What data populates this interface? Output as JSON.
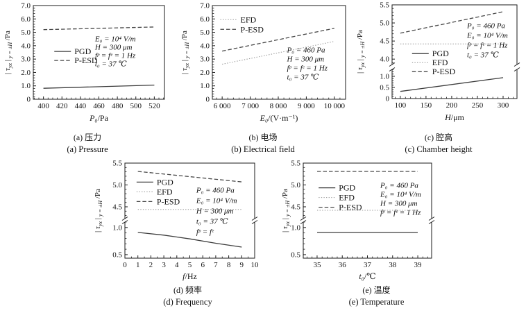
{
  "chart_data": [
    {
      "id": "a",
      "type": "line",
      "caption_cn": "(a) 压力",
      "caption_en": "(a) Pressure",
      "xlabel": [
        {
          "t": "P₀",
          "i": true
        },
        {
          "t": "/Pa",
          "i": false
        }
      ],
      "ylabel": [
        {
          "t": "| ",
          "i": false,
          "s": false
        },
        {
          "t": "τ",
          "i": true,
          "s": false
        },
        {
          "t": "yx",
          "i": true,
          "s": true
        },
        {
          "t": " |",
          "i": false,
          "s": false
        },
        {
          "t": " y = ±H",
          "i": true,
          "s": true
        },
        {
          "t": " /Pa",
          "i": false,
          "s": false
        }
      ],
      "x": {
        "min": 389,
        "max": 531,
        "ticks": [
          400,
          420,
          440,
          460,
          480,
          500,
          520
        ],
        "labels": [
          "400",
          "420",
          "440",
          "460",
          "480",
          "500",
          "520"
        ],
        "minor": 3
      },
      "segments": [
        {
          "min": 0,
          "max": 7,
          "ticks": [
            0,
            1,
            2,
            3,
            4,
            5,
            6,
            7
          ],
          "labels": [
            "0",
            "1.0",
            "2.0",
            "3.0",
            "4.0",
            "5.0",
            "6.0",
            "7.0"
          ],
          "minor": 4
        }
      ],
      "series": [
        {
          "name": "PGD",
          "dash": "solid",
          "x": [
            400,
            520
          ],
          "y": [
            0.82,
            1.06
          ]
        },
        {
          "name": "P-ESD",
          "dash": "dashed",
          "x": [
            400,
            520
          ],
          "y": [
            5.2,
            5.4
          ]
        }
      ],
      "legend": {
        "pos": [
          0.16,
          0.49
        ],
        "spacing": 13,
        "items": [
          "PGD",
          "P-ESD"
        ]
      },
      "note": {
        "pos": [
          0.47,
          0.35
        ],
        "spacing": 12,
        "lines": [
          "E₀ = 10⁴ V/m",
          "H = 300 μm",
          "fᵖ = fᵉ = 1 Hz",
          "t₀ = 37 ℃"
        ]
      }
    },
    {
      "id": "b",
      "type": "line",
      "caption_cn": "(b) 电场",
      "caption_en": "(b) Electrical field",
      "xlabel": [
        {
          "t": "E₀",
          "i": true
        },
        {
          "t": "/(V·m⁻¹)",
          "i": false
        }
      ],
      "ylabel": [
        {
          "t": "| ",
          "i": false,
          "s": false
        },
        {
          "t": "τ",
          "i": true,
          "s": false
        },
        {
          "t": "yx",
          "i": true,
          "s": true
        },
        {
          "t": " |",
          "i": false,
          "s": false
        },
        {
          "t": " y = ±H",
          "i": true,
          "s": true
        },
        {
          "t": " /Pa",
          "i": false,
          "s": false
        }
      ],
      "x": {
        "min": 5650,
        "max": 10400,
        "ticks": [
          6000,
          7000,
          8000,
          9000,
          10000
        ],
        "labels": [
          "6 000",
          "7 000",
          "8 000",
          "9 000",
          "10 000"
        ],
        "minor": 4
      },
      "segments": [
        {
          "min": 0,
          "max": 7,
          "ticks": [
            0,
            1,
            2,
            3,
            4,
            5,
            6,
            7
          ],
          "labels": [
            "0",
            "1.0",
            "2.0",
            "3.0",
            "4.0",
            "5.0",
            "6.0",
            "7.0"
          ],
          "minor": 4
        }
      ],
      "series": [
        {
          "name": "EFD",
          "dash": "dotted",
          "x": [
            6000,
            10000
          ],
          "y": [
            2.62,
            4.32
          ]
        },
        {
          "name": "P-ESD",
          "dash": "dashed",
          "x": [
            6000,
            10000
          ],
          "y": [
            3.6,
            5.3
          ]
        }
      ],
      "legend": {
        "pos": [
          0.06,
          0.15
        ],
        "spacing": 14,
        "items": [
          "EFD",
          "P-ESD"
        ]
      },
      "note": {
        "pos": [
          0.56,
          0.47
        ],
        "spacing": 13,
        "lines": [
          "P₀ = 460 Pa",
          "H = 300 μm",
          "fᵖ = fᵉ = 1 Hz",
          "t₀ = 37 ℃"
        ]
      }
    },
    {
      "id": "c",
      "type": "line",
      "caption_cn": "(c) 腔高",
      "caption_en": "(c) Chamber height",
      "xlabel": [
        {
          "t": "H",
          "i": true
        },
        {
          "t": "/μm",
          "i": false
        }
      ],
      "ylabel": [
        {
          "t": "| ",
          "i": false,
          "s": false
        },
        {
          "t": "τ",
          "i": true,
          "s": false
        },
        {
          "t": "yx",
          "i": true,
          "s": true
        },
        {
          "t": " |",
          "i": false,
          "s": false
        },
        {
          "t": " y = ±H",
          "i": true,
          "s": true
        },
        {
          "t": " /Pa",
          "i": false,
          "s": false
        }
      ],
      "x": {
        "min": 84,
        "max": 327,
        "ticks": [
          100,
          150,
          200,
          250,
          300
        ],
        "labels": [
          "100",
          "150",
          "200",
          "250",
          "300"
        ],
        "minor": 4
      },
      "segments": [
        {
          "min": 3.85,
          "max": 5.5,
          "ticks": [
            4,
            4.5,
            5,
            5.5
          ],
          "labels": [
            "4.0",
            "4.5",
            "5.0",
            "5.5"
          ],
          "minor": 4
        },
        {
          "min": 0,
          "max": 1.31,
          "ticks": [
            0,
            0.5,
            1
          ],
          "labels": [
            "0",
            "0.5",
            "1.0"
          ],
          "minor": 4
        }
      ],
      "series": [
        {
          "name": "PGD",
          "dash": "solid",
          "x": [
            100,
            300
          ],
          "y": [
            0.32,
            0.94
          ]
        },
        {
          "name": "EFD",
          "dash": "dotted",
          "x": [
            100,
            300
          ],
          "y": [
            4.42,
            4.42
          ]
        },
        {
          "name": "P-ESD",
          "dash": "dashed",
          "x": [
            100,
            300
          ],
          "y": [
            4.72,
            5.31
          ]
        }
      ],
      "legend": {
        "pos": [
          0.16,
          0.52
        ],
        "spacing": 13,
        "items": [
          "PGD",
          "EFD",
          "P-ESD"
        ]
      },
      "note": {
        "pos": [
          0.6,
          0.22
        ],
        "spacing": 14,
        "lines": [
          "P₀ = 460 Pa",
          "E₀ = 10⁴ V/m",
          "fᵖ = fᵉ = 1 Hz",
          "t₀ = 37 ℃"
        ]
      }
    },
    {
      "id": "d",
      "type": "line",
      "caption_cn": "(d) 频率",
      "caption_en": "(d) Frequency",
      "xlabel": [
        {
          "t": "f",
          "i": true
        },
        {
          "t": "/Hz",
          "i": false
        }
      ],
      "ylabel": [
        {
          "t": "| ",
          "i": false,
          "s": false
        },
        {
          "t": "τ",
          "i": true,
          "s": false
        },
        {
          "t": "yx",
          "i": true,
          "s": true
        },
        {
          "t": " |",
          "i": false,
          "s": false
        },
        {
          "t": " y = ±H",
          "i": true,
          "s": true
        },
        {
          "t": " /Pa",
          "i": false,
          "s": false
        }
      ],
      "x": {
        "min": 0,
        "max": 10,
        "ticks": [
          0,
          1,
          2,
          3,
          4,
          5,
          6,
          7,
          8,
          9,
          10
        ],
        "labels": [
          "0",
          "1",
          "2",
          "3",
          "4",
          "5",
          "6",
          "7",
          "8",
          "9",
          "10"
        ],
        "minor": 1
      },
      "segments": [
        {
          "min": 4.23,
          "max": 5.5,
          "ticks": [
            4.5,
            5,
            5.5
          ],
          "labels": [
            "4.5",
            "5.0",
            "5.5"
          ],
          "minor": 4
        },
        {
          "min": 0.435,
          "max": 1.1,
          "ticks": [
            0.5,
            1
          ],
          "labels": [
            "0.5",
            "1.0"
          ],
          "minor": 4
        }
      ],
      "series": [
        {
          "name": "PGD",
          "dash": "solid",
          "x": [
            1,
            3,
            5,
            7,
            9
          ],
          "y": [
            0.91,
            0.86,
            0.79,
            0.71,
            0.64
          ]
        },
        {
          "name": "EFD",
          "dash": "dotted",
          "x": [
            1,
            9
          ],
          "y": [
            4.44,
            4.44
          ]
        },
        {
          "name": "P-ESD",
          "dash": "dashed",
          "x": [
            1,
            9
          ],
          "y": [
            5.31,
            5.07
          ]
        }
      ],
      "legend": {
        "pos": [
          0.09,
          0.2
        ],
        "spacing": 14,
        "items": [
          "PGD",
          "EFD",
          "P-ESD"
        ]
      },
      "note": {
        "pos": [
          0.55,
          0.28
        ],
        "spacing": 15,
        "lines": [
          "P₀ = 460 Pa",
          "E₀ = 10⁴ V/m",
          "H = 300 μm",
          "t₀ = 37 ℃",
          "fᵖ = fᵉ"
        ]
      }
    },
    {
      "id": "e",
      "type": "line",
      "caption_cn": "(e) 温度",
      "caption_en": "(e) Temperature",
      "xlabel": [
        {
          "t": "t₀",
          "i": true
        },
        {
          "t": "/℃",
          "i": false
        }
      ],
      "ylabel": [
        {
          "t": "| ",
          "i": false,
          "s": false
        },
        {
          "t": "τ",
          "i": true,
          "s": false
        },
        {
          "t": "yx",
          "i": true,
          "s": true
        },
        {
          "t": " |",
          "i": false,
          "s": false
        },
        {
          "t": " y = ±H",
          "i": true,
          "s": true
        },
        {
          "t": " /Pa",
          "i": false,
          "s": false
        }
      ],
      "x": {
        "min": 34.45,
        "max": 39.55,
        "ticks": [
          35,
          36,
          37,
          38,
          39
        ],
        "labels": [
          "35",
          "36",
          "37",
          "38",
          "39"
        ],
        "minor": 4
      },
      "segments": [
        {
          "min": 4.23,
          "max": 5.5,
          "ticks": [
            4.5,
            5,
            5.5
          ],
          "labels": [
            "4.5",
            "5.0",
            "5.5"
          ],
          "minor": 4
        },
        {
          "min": 0.435,
          "max": 1.1,
          "ticks": [
            0.5,
            1
          ],
          "labels": [
            "0.5",
            "1.0"
          ],
          "minor": 4
        }
      ],
      "series": [
        {
          "name": "PGD",
          "dash": "solid",
          "x": [
            35,
            39
          ],
          "y": [
            0.91,
            0.91
          ]
        },
        {
          "name": "EFD",
          "dash": "dotted",
          "x": [
            35,
            39
          ],
          "y": [
            4.42,
            4.42
          ]
        },
        {
          "name": "P-ESD",
          "dash": "dashed",
          "x": [
            35,
            39
          ],
          "y": [
            5.31,
            5.31
          ]
        }
      ],
      "legend": {
        "pos": [
          0.12,
          0.26
        ],
        "spacing": 14,
        "items": [
          "PGD",
          "EFD",
          "P-ESD"
        ]
      },
      "note": {
        "pos": [
          0.6,
          0.23
        ],
        "spacing": 13,
        "lines": [
          "P₀ = 460 Pa",
          "E₀ = 10⁴ V/m",
          "H = 300 μm",
          "fᵖ = fᵉ = 1 Hz"
        ]
      }
    }
  ],
  "styles": {
    "line_color": "#3c3c3c",
    "dashed_color": "#474747",
    "dotted_color": "#9a9a9a",
    "axis_color": "#1a1a1a"
  }
}
